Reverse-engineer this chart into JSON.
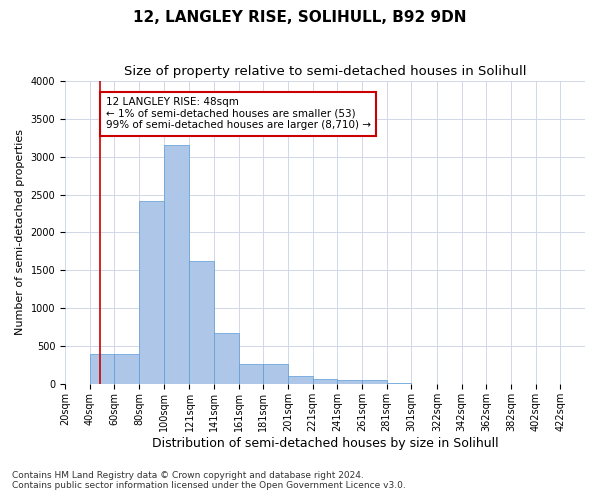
{
  "title": "12, LANGLEY RISE, SOLIHULL, B92 9DN",
  "subtitle": "Size of property relative to semi-detached houses in Solihull",
  "xlabel": "Distribution of semi-detached houses by size in Solihull",
  "ylabel": "Number of semi-detached properties",
  "footnote1": "Contains HM Land Registry data © Crown copyright and database right 2024.",
  "footnote2": "Contains public sector information licensed under the Open Government Licence v3.0.",
  "annotation_title": "12 LANGLEY RISE: 48sqm",
  "annotation_line1": "← 1% of semi-detached houses are smaller (53)",
  "annotation_line2": "99% of semi-detached houses are larger (8,710) →",
  "property_size_sqm": 48,
  "bin_labels": [
    "20sqm",
    "40sqm",
    "60sqm",
    "80sqm",
    "100sqm",
    "121sqm",
    "141sqm",
    "161sqm",
    "181sqm",
    "201sqm",
    "221sqm",
    "241sqm",
    "261sqm",
    "281sqm",
    "301sqm",
    "322sqm",
    "342sqm",
    "362sqm",
    "382sqm",
    "402sqm",
    "422sqm"
  ],
  "bin_left_edges": [
    20,
    40,
    60,
    80,
    100,
    121,
    141,
    161,
    181,
    201,
    221,
    241,
    261,
    281,
    301,
    322,
    342,
    362,
    382,
    402,
    422
  ],
  "bin_widths": [
    20,
    20,
    20,
    20,
    21,
    20,
    20,
    20,
    20,
    20,
    20,
    20,
    20,
    20,
    21,
    20,
    20,
    20,
    20,
    20,
    20
  ],
  "bar_heights": [
    5,
    400,
    400,
    2420,
    3150,
    1620,
    680,
    270,
    270,
    115,
    70,
    60,
    55,
    20,
    10,
    5,
    3,
    2,
    1,
    1,
    0
  ],
  "bar_color": "#aec6e8",
  "bar_edge_color": "#5b9bd5",
  "grid_color": "#d0d8e8",
  "annotation_box_color": "#ffffff",
  "annotation_box_edge": "#cc0000",
  "vertical_line_color": "#cc0000",
  "ylim": [
    0,
    4000
  ],
  "yticks": [
    0,
    500,
    1000,
    1500,
    2000,
    2500,
    3000,
    3500,
    4000
  ],
  "background_color": "#ffffff",
  "title_fontsize": 11,
  "subtitle_fontsize": 9.5,
  "xlabel_fontsize": 9,
  "ylabel_fontsize": 8,
  "tick_fontsize": 7,
  "annotation_fontsize": 7.5,
  "footnote_fontsize": 6.5
}
